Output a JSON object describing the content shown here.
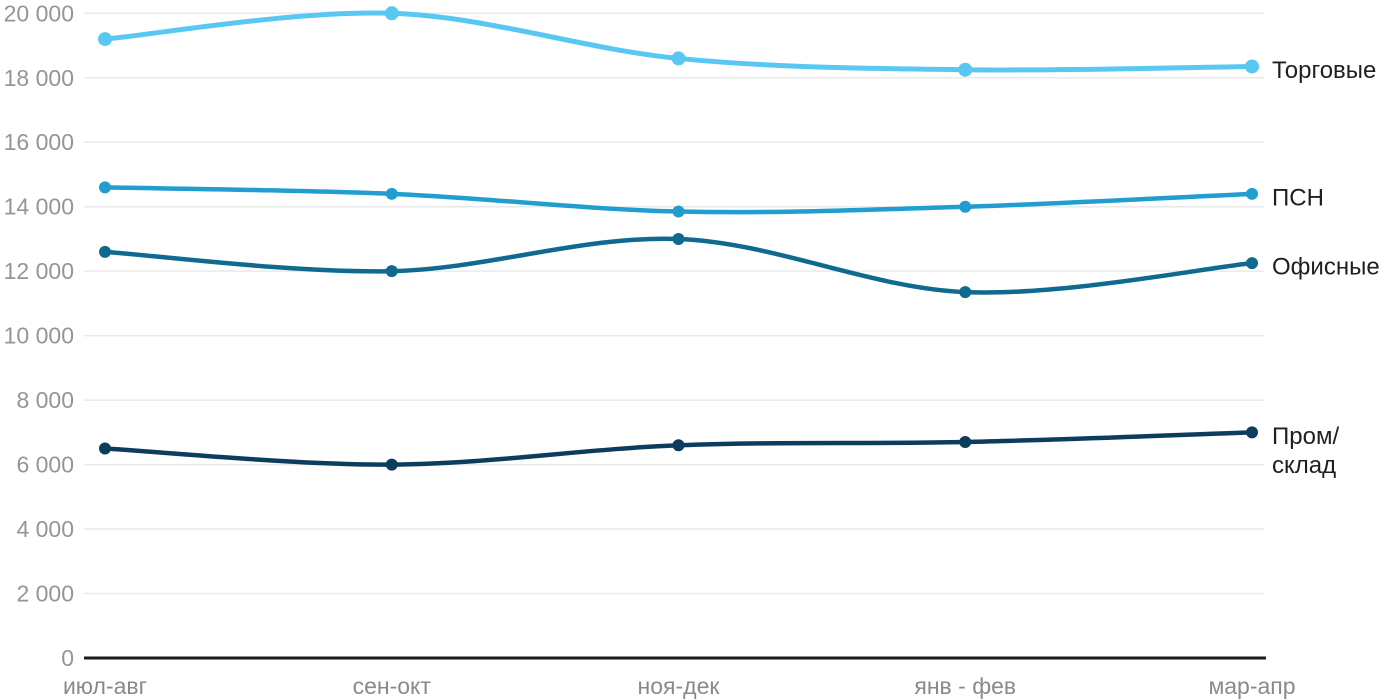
{
  "chart_data": {
    "type": "line",
    "title": "",
    "xlabel": "",
    "ylabel": "",
    "categories": [
      "июл-авг",
      "сен-окт",
      "ноя-дек",
      "янв - фев",
      "мар-апр"
    ],
    "series": [
      {
        "id": "torgovye",
        "name": "Торговые",
        "label_lines": [
          "Торговые"
        ],
        "color": "#58C8F3",
        "values": [
          19200,
          20000,
          18600,
          18250,
          18350
        ]
      },
      {
        "id": "psn",
        "name": "ПСН",
        "label_lines": [
          "ПСН"
        ],
        "color": "#209ECF",
        "values": [
          14600,
          14400,
          13850,
          14000,
          14400
        ]
      },
      {
        "id": "ofisnye",
        "name": "Офисные",
        "label_lines": [
          "Офисные"
        ],
        "color": "#106A90",
        "values": [
          12600,
          12000,
          13000,
          11350,
          12250
        ]
      },
      {
        "id": "prom-sklad",
        "name": "Пром/склад",
        "label_lines": [
          "Пром/",
          "склад"
        ],
        "color": "#0D3D5D",
        "values": [
          6500,
          6000,
          6600,
          6700,
          7000
        ]
      }
    ],
    "ylim": [
      0,
      20000
    ],
    "ytick_step": 2000,
    "ytick_labels": [
      "0",
      "2 000",
      "4 000",
      "6 000",
      "8 000",
      "10 000",
      "12 000",
      "14 000",
      "16 000",
      "18 000",
      "20 000"
    ],
    "grid": "horizontal",
    "legend_position": "right-end-of-lines",
    "line_style": "smooth-spline-with-dots"
  },
  "colors": {
    "background": "#FFFFFF",
    "gridline": "#E9E9E9",
    "axis_line": "#1C1C1C",
    "ytick_text": "#959595",
    "xtick_text": "#8A8A8A",
    "series_label_text": "#1F1F1F"
  }
}
